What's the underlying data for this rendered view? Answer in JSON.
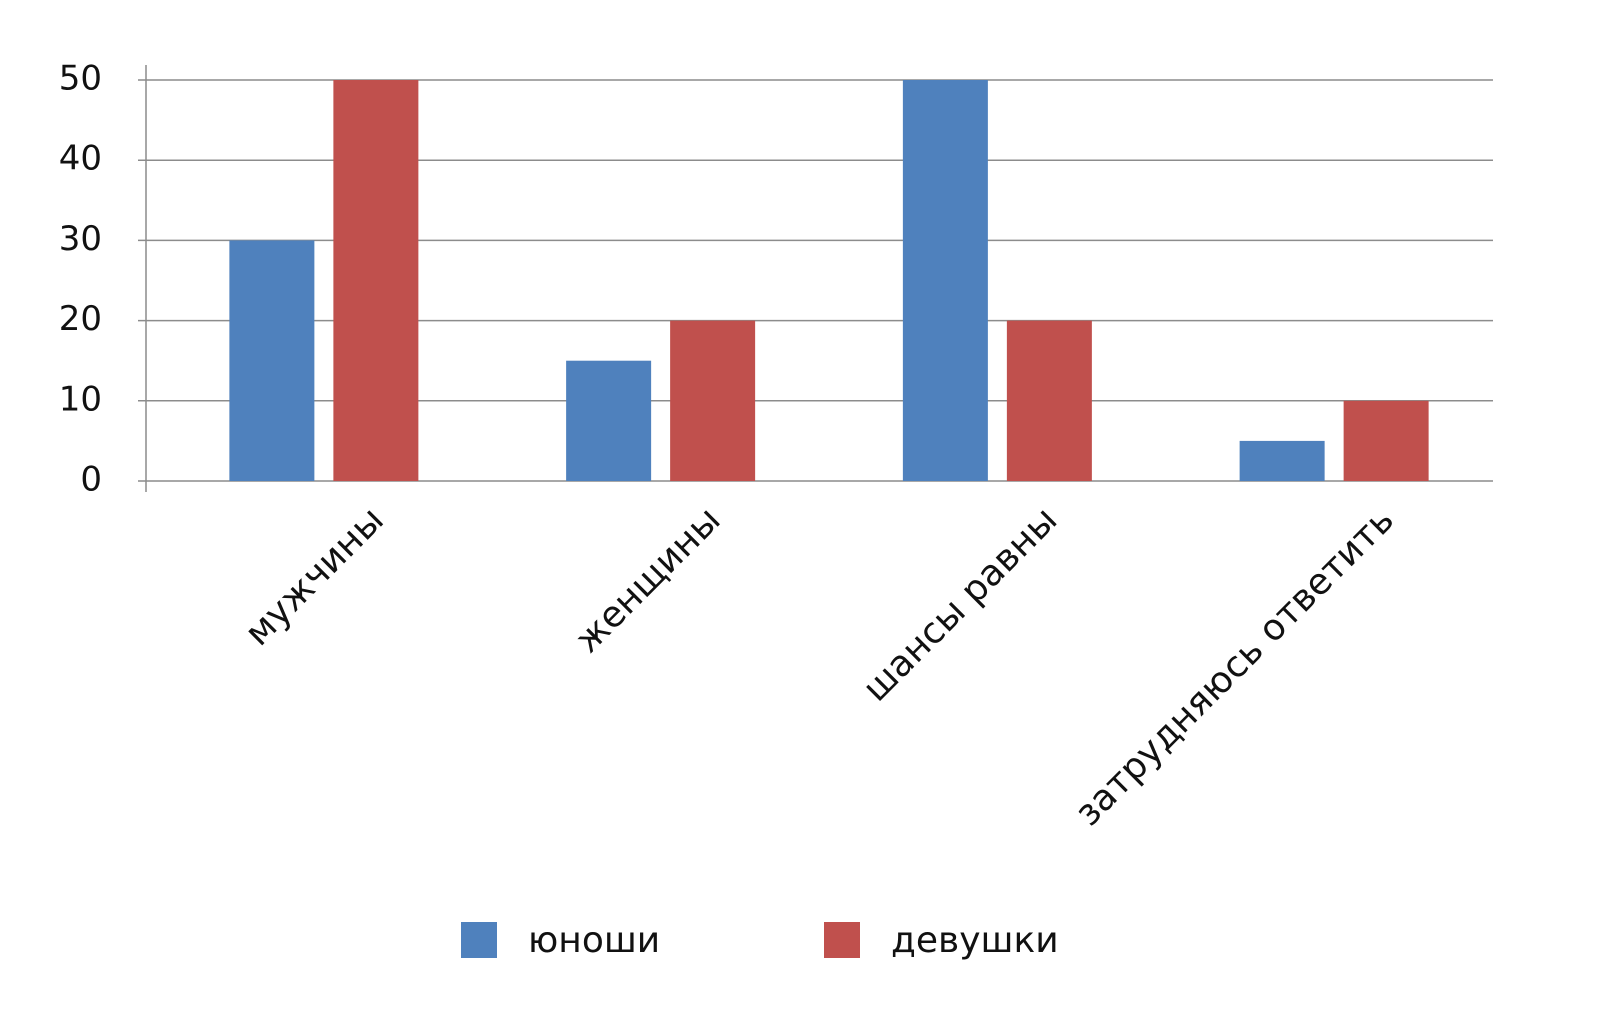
{
  "chart_data": {
    "type": "bar",
    "categories": [
      "мужчины",
      "женщины",
      "шансы равны",
      "затрудняюсь ответить"
    ],
    "series": [
      {
        "name": "юноши",
        "color": "#4f81bd",
        "values": [
          30,
          15,
          50,
          5
        ]
      },
      {
        "name": "девушки",
        "color": "#c0504d",
        "values": [
          50,
          20,
          20,
          10
        ]
      }
    ],
    "ylim": [
      0,
      50
    ],
    "yticks": [
      0,
      10,
      20,
      30,
      40,
      50
    ],
    "grid": true,
    "legend": "bottom"
  }
}
